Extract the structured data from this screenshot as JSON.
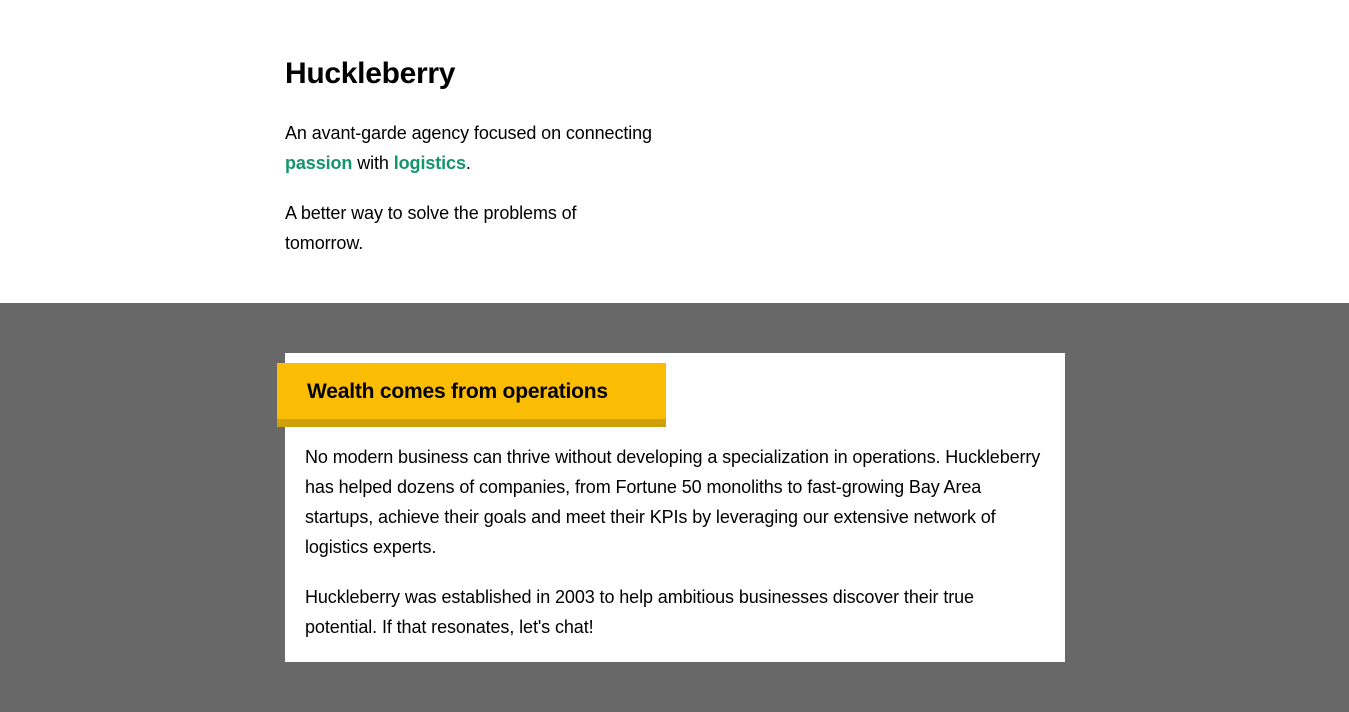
{
  "hero": {
    "title": "Huckleberry",
    "tagline": {
      "prefix": "An avant-garde agency focused on connecting ",
      "highlight_1": "passion",
      "middle": " with ",
      "highlight_2": "logistics",
      "suffix": "."
    },
    "subline": "A better way to solve the problems of tomorrow."
  },
  "card": {
    "heading": "Wealth comes from operations",
    "paragraphs": [
      "No modern business can thrive without developing a specialization in operations. Huckleberry has helped dozens of companies, from Fortune 50 monoliths to fast-growing Bay Area startups, achieve their goals and meet their KPIs by leveraging our extensive network of logistics experts.",
      "Huckleberry was established in 2003 to help ambitious businesses discover their true potential. If that resonates, let's chat!"
    ]
  },
  "colors": {
    "accent_green": "#15956b",
    "heading_yellow": "#fbbc04",
    "heading_shadow": "#cf9f0c",
    "band_gray": "#686868"
  }
}
